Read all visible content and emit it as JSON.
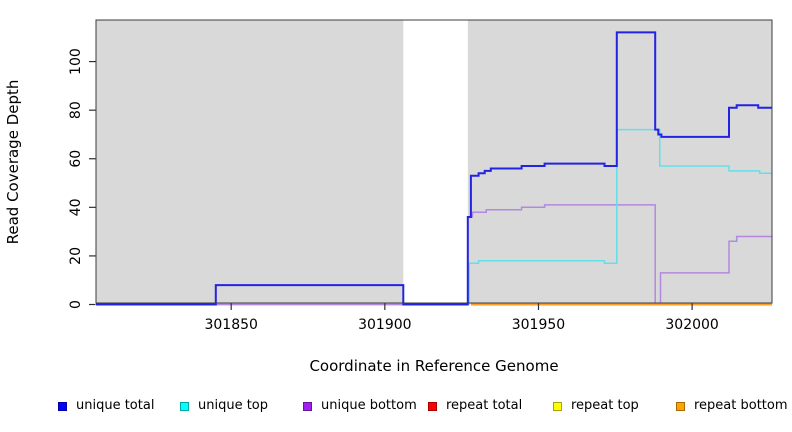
{
  "y_axis": {
    "label": "Read Coverage Depth",
    "tick_values": [
      0,
      20,
      40,
      60,
      80,
      100
    ]
  },
  "x_axis": {
    "label": "Coordinate in Reference Genome",
    "tick_values": [
      301850,
      301900,
      301950,
      302000
    ]
  },
  "legend": {
    "items": [
      {
        "label": "unique total",
        "color": "#0000ff"
      },
      {
        "label": "unique top",
        "color": "#00ffff"
      },
      {
        "label": "unique bottom",
        "color": "#a020f0"
      },
      {
        "label": "repeat total",
        "color": "#ff0000"
      },
      {
        "label": "repeat top",
        "color": "#ffff00"
      },
      {
        "label": "repeat bottom",
        "color": "#ffa500"
      }
    ]
  },
  "colors": {
    "panel_background": "#d9d9d9",
    "masked_region": "#ffffff",
    "box_border": "#3c3c3c",
    "tick": "#303030",
    "text": "#000000"
  },
  "chart_data": {
    "type": "line",
    "title": "",
    "xlabel": "Coordinate in Reference Genome",
    "ylabel": "Read Coverage Depth",
    "xlim": [
      301806,
      302026
    ],
    "ylim": [
      0,
      116.5
    ],
    "x_ticks": [
      301850,
      301900,
      301950,
      302000
    ],
    "y_ticks": [
      0,
      20,
      40,
      60,
      80,
      100
    ],
    "grid": false,
    "legend_position": "bottom",
    "panel_background": "#d9d9d9",
    "masked_region": {
      "x_start": 301906,
      "x_end": 301927,
      "color": "#ffffff",
      "note": "white unmapped band, full plot height; unique-total line crosses it at depth 0"
    },
    "series": [
      {
        "name": "zero overlap line (unique top / repeat lines overlapping at depth 0)",
        "in_legend": false,
        "color": "#8fd394",
        "stroke_width": 1.8,
        "points": [
          [
            301845,
            0
          ],
          [
            301906,
            0
          ]
        ]
      },
      {
        "name": "repeat total",
        "in_legend": true,
        "color": "#ff0000",
        "stroke_width": 1.5,
        "points": [
          [
            301928,
            0
          ],
          [
            302026,
            0
          ]
        ]
      },
      {
        "name": "repeat top",
        "in_legend": true,
        "color": "#ffff00",
        "stroke_width": 1.5,
        "points": [
          [
            301928,
            0
          ],
          [
            302026,
            0
          ]
        ]
      },
      {
        "name": "unique bottom",
        "in_legend": true,
        "color": "#b488e0",
        "stroke_width": 1.5,
        "points": [
          [
            301806,
            0
          ],
          [
            301927,
            0
          ],
          [
            301927,
            36
          ],
          [
            301928.5,
            36
          ],
          [
            301928.5,
            38
          ],
          [
            301933,
            38
          ],
          [
            301933,
            39
          ],
          [
            301944.5,
            39
          ],
          [
            301944.5,
            40
          ],
          [
            301952,
            40
          ],
          [
            301952,
            41
          ],
          [
            301988,
            41
          ],
          [
            301988,
            0
          ],
          [
            301989.7,
            0
          ],
          [
            301989.7,
            13
          ],
          [
            302012,
            13
          ],
          [
            302012,
            26
          ],
          [
            302014.5,
            26
          ],
          [
            302014.5,
            28
          ],
          [
            302026,
            28
          ]
        ]
      },
      {
        "name": "unique top",
        "in_legend": true,
        "color": "#63dfe9",
        "stroke_width": 1.5,
        "points": [
          [
            301927.5,
            0
          ],
          [
            301927.5,
            17
          ],
          [
            301930.5,
            17
          ],
          [
            301930.5,
            18
          ],
          [
            301971.5,
            18
          ],
          [
            301971.5,
            17
          ],
          [
            301975.5,
            17
          ],
          [
            301975.5,
            72
          ],
          [
            301989.5,
            72
          ],
          [
            301989.5,
            57
          ],
          [
            302012,
            57
          ],
          [
            302012,
            55
          ],
          [
            302022,
            55
          ],
          [
            302022,
            54
          ],
          [
            302026,
            54
          ]
        ]
      },
      {
        "name": "unique total",
        "in_legend": true,
        "color": "#2323e2",
        "stroke_width": 2,
        "points": [
          [
            301806,
            0
          ],
          [
            301845,
            0
          ],
          [
            301845,
            8
          ],
          [
            301906,
            8
          ],
          [
            301906,
            0
          ],
          [
            301927,
            0
          ],
          [
            301927,
            36
          ],
          [
            301928,
            36
          ],
          [
            301928,
            53
          ],
          [
            301930.5,
            53
          ],
          [
            301930.5,
            54
          ],
          [
            301932.5,
            54
          ],
          [
            301932.5,
            55
          ],
          [
            301934.5,
            55
          ],
          [
            301934.5,
            56
          ],
          [
            301944.5,
            56
          ],
          [
            301944.5,
            57
          ],
          [
            301952,
            57
          ],
          [
            301952,
            58
          ],
          [
            301971.5,
            58
          ],
          [
            301971.5,
            57
          ],
          [
            301975.5,
            57
          ],
          [
            301975.5,
            112
          ],
          [
            301988,
            112
          ],
          [
            301988,
            72
          ],
          [
            301989,
            72
          ],
          [
            301989,
            70
          ],
          [
            301990,
            70
          ],
          [
            301990,
            69
          ],
          [
            302012,
            69
          ],
          [
            302012,
            81
          ],
          [
            302014.5,
            81
          ],
          [
            302014.5,
            82
          ],
          [
            302021.5,
            82
          ],
          [
            302021.5,
            81
          ],
          [
            302026,
            81
          ]
        ]
      },
      {
        "name": "repeat bottom",
        "in_legend": true,
        "color": "#ff9d26",
        "stroke_width": 2,
        "points": [
          [
            301928,
            0
          ],
          [
            302026,
            0
          ]
        ]
      }
    ]
  }
}
